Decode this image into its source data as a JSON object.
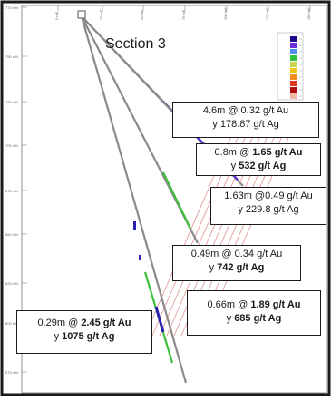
{
  "section_title": "Section 3",
  "northings": [
    "775 mN",
    "750 mN",
    "725 mN",
    "700 mN",
    "675 mN",
    "650 mN",
    "625 mN",
    "600 mN",
    "575 mN"
  ],
  "eastings": [
    "0 mE",
    "25 mE",
    "50 mE",
    "75 mE",
    "100 mE",
    "125 mE",
    "150 mE"
  ],
  "intercepts": [
    {
      "id": "intercept-1",
      "line1": {
        "pre": "4.6m @ 0.32 g/t Au",
        "bold": "",
        "post": ""
      },
      "line2": {
        "pre": "y 178.87 g/t Ag",
        "bold": "",
        "post": ""
      }
    },
    {
      "id": "intercept-2",
      "line1": {
        "pre": "0.8m @ ",
        "bold": "1.65 g/t Au",
        "post": ""
      },
      "line2": {
        "pre": "y ",
        "bold": "532 g/t Ag",
        "post": ""
      }
    },
    {
      "id": "intercept-3",
      "line1": {
        "pre": "1.63m @0.49 g/t Au",
        "bold": "",
        "post": ""
      },
      "line2": {
        "pre": "y 229.8 g/t Ag",
        "bold": "",
        "post": ""
      }
    },
    {
      "id": "intercept-4",
      "line1": {
        "pre": "0.49m @ 0.34 g/t Au",
        "bold": "",
        "post": ""
      },
      "line2": {
        "pre": "y ",
        "bold": "742 g/t Ag",
        "post": ""
      }
    },
    {
      "id": "intercept-5",
      "line1": {
        "pre": "0.66m @ ",
        "bold": "1.89 g/t Au",
        "post": ""
      },
      "line2": {
        "pre": "y ",
        "bold": "685 g/t Ag",
        "post": ""
      }
    },
    {
      "id": "intercept-6",
      "line1": {
        "pre": "0.29m @ ",
        "bold": "2.45 g/t Au",
        "post": ""
      },
      "line2": {
        "pre": "y ",
        "bold": "1075 g/t Ag",
        "post": ""
      }
    }
  ],
  "legend_colors": [
    "#1a0a8c",
    "#6a2bd8",
    "#4e8ff0",
    "#2fbf3f",
    "#c9d64a",
    "#f0c419",
    "#f28c1a",
    "#e03a1e",
    "#b01010",
    "#f2b8a8"
  ],
  "colors": {
    "drill_trace": "#8a8a8a",
    "structure_lines": "#e39a9a",
    "frame": "#1a1a1a",
    "high_grade": "#2a1fb0",
    "mid_grade": "#3fbf3f"
  }
}
